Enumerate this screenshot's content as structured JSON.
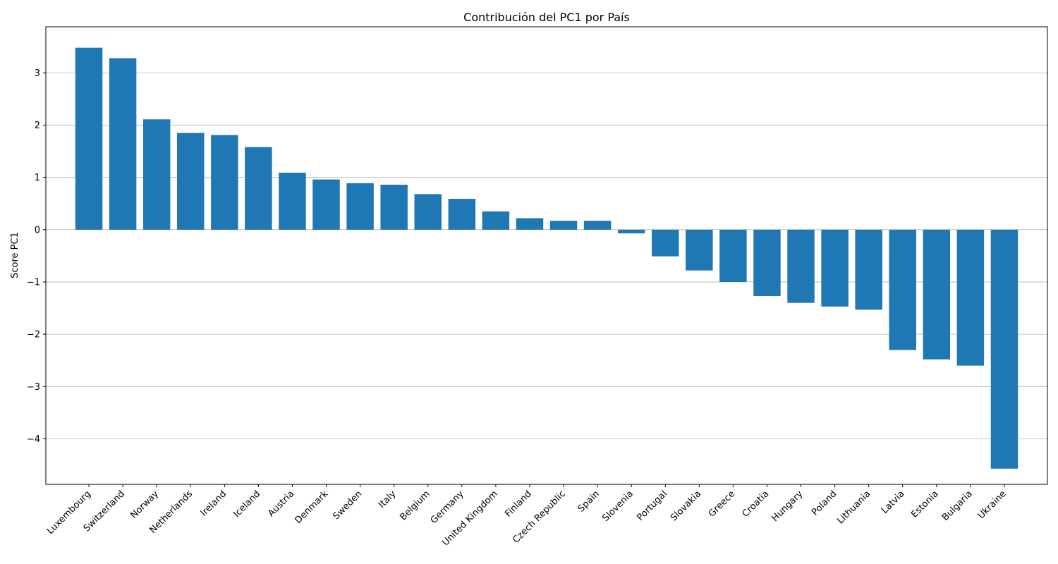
{
  "chart_data": {
    "type": "bar",
    "title": "Contribución del PC1 por País",
    "xlabel": "",
    "ylabel": "Score PC1",
    "categories": [
      "Luxembourg",
      "Switzerland",
      "Norway",
      "Netherlands",
      "Ireland",
      "Iceland",
      "Austria",
      "Denmark",
      "Sweden",
      "Italy",
      "Belgium",
      "Germany",
      "United Kingdom",
      "Finland",
      "Czech Republic",
      "Spain",
      "Slovenia",
      "Portugal",
      "Slovakia",
      "Greece",
      "Croatia",
      "Hungary",
      "Poland",
      "Lithuania",
      "Latvia",
      "Estonia",
      "Bulgaria",
      "Ukraine"
    ],
    "values": [
      3.48,
      3.28,
      2.11,
      1.85,
      1.81,
      1.58,
      1.09,
      0.96,
      0.89,
      0.86,
      0.68,
      0.59,
      0.35,
      0.22,
      0.17,
      0.17,
      -0.07,
      -0.51,
      -0.78,
      -1.0,
      -1.27,
      -1.4,
      -1.47,
      -1.53,
      -2.3,
      -2.48,
      -2.6,
      -4.57
    ],
    "yticks": [
      3,
      2,
      1,
      0,
      -1,
      -2,
      -3,
      -4
    ],
    "ytick_labels": [
      "3",
      "2",
      "1",
      "0",
      "−1",
      "−2",
      "−3",
      "−4"
    ],
    "ylim": [
      -4.87,
      3.88
    ],
    "grid": "y",
    "bar_color": "#1f77b4"
  }
}
